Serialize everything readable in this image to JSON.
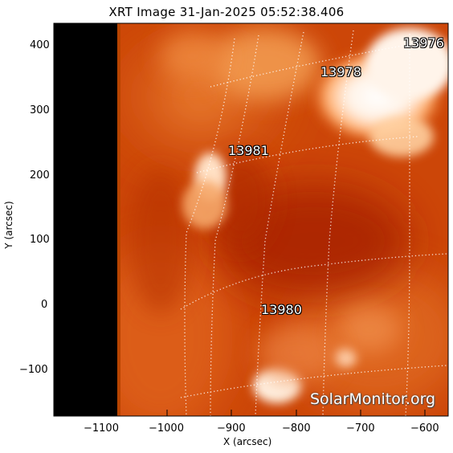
{
  "title": "XRT Image 31-Jan-2025 05:52:38.406",
  "axes": {
    "xlabel": "X (arcsec)",
    "ylabel": "Y (arcsec)",
    "x_ticks": [
      "−1100",
      "−1000",
      "−900",
      "−800",
      "−700",
      "−600"
    ],
    "y_ticks": [
      "400",
      "300",
      "200",
      "100",
      "0",
      "−100"
    ]
  },
  "regions": [
    {
      "id": "13976",
      "label": "13976"
    },
    {
      "id": "13978",
      "label": "13978"
    },
    {
      "id": "13981",
      "label": "13981"
    },
    {
      "id": "13980",
      "label": "13980"
    }
  ],
  "watermark": "SolarMonitor.org",
  "colors": {
    "disk_dark": "#b32a00",
    "disk_mid": "#dd5a10",
    "corona_bright": "#ffe8d0",
    "off_disk": "#000000"
  }
}
